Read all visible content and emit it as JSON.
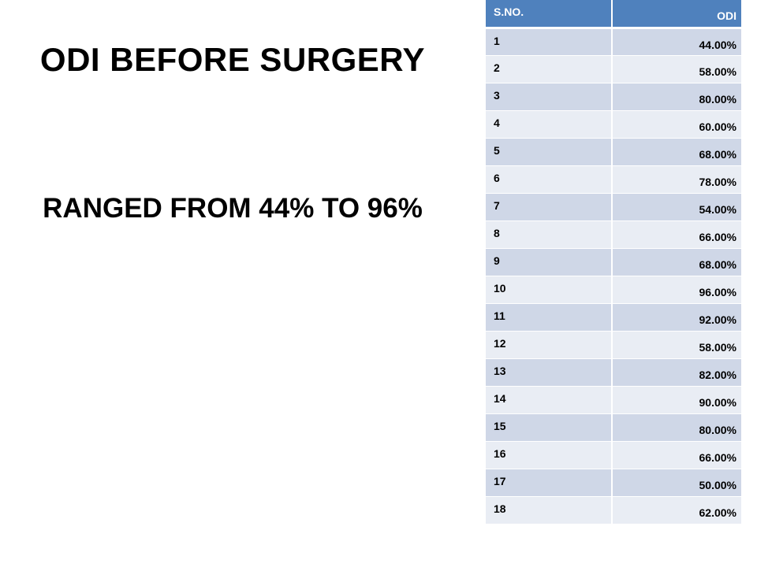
{
  "title": "ODI BEFORE SURGERY",
  "subtitle": "RANGED FROM  44% TO 96%",
  "table": {
    "headers": [
      "S.NO.",
      "ODI"
    ],
    "rows": [
      [
        "1",
        "44.00%"
      ],
      [
        "2",
        "58.00%"
      ],
      [
        "3",
        "80.00%"
      ],
      [
        "4",
        "60.00%"
      ],
      [
        "5",
        "68.00%"
      ],
      [
        "6",
        "78.00%"
      ],
      [
        "7",
        "54.00%"
      ],
      [
        "8",
        "66.00%"
      ],
      [
        "9",
        "68.00%"
      ],
      [
        "10",
        "96.00%"
      ],
      [
        "11",
        "92.00%"
      ],
      [
        "12",
        "58.00%"
      ],
      [
        "13",
        "82.00%"
      ],
      [
        "14",
        "90.00%"
      ],
      [
        "15",
        "80.00%"
      ],
      [
        "16",
        "66.00%"
      ],
      [
        "17",
        "50.00%"
      ],
      [
        "18",
        "62.00%"
      ]
    ]
  },
  "colors": {
    "header_bg": "#4f81bd",
    "row_dark": "#cfd7e7",
    "row_light": "#e9edf4"
  }
}
